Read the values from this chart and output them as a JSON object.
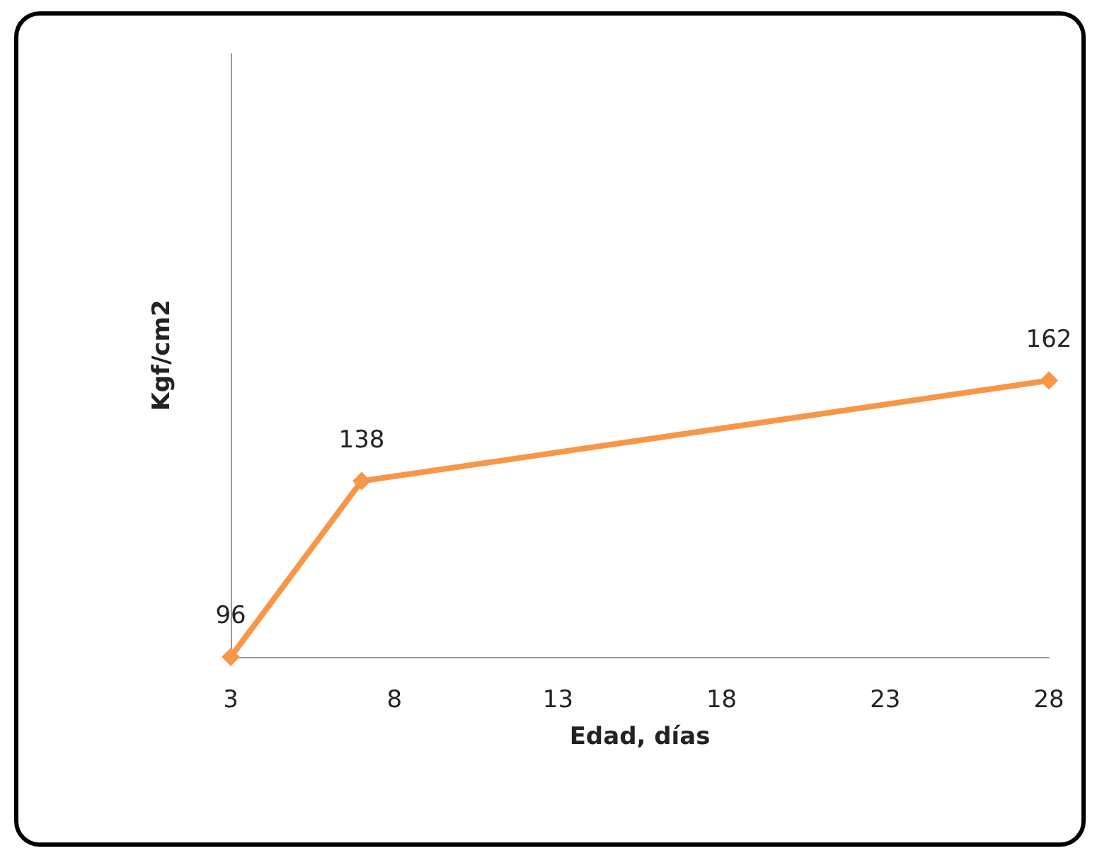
{
  "chart_data": {
    "type": "line",
    "xlabel": "Edad, días",
    "ylabel": "Kgf/cm2",
    "x": [
      3,
      7,
      28
    ],
    "series": [
      {
        "color": "#f79646",
        "values": [
          96,
          138,
          162
        ]
      }
    ],
    "xlim": [
      3,
      28
    ],
    "xticks": [
      3,
      8,
      13,
      18,
      23,
      28
    ],
    "ylim": [
      96,
      240
    ],
    "tick_labels": "x",
    "data_labels": true,
    "grid": false,
    "marker": "diamond",
    "line_style": "solid"
  }
}
